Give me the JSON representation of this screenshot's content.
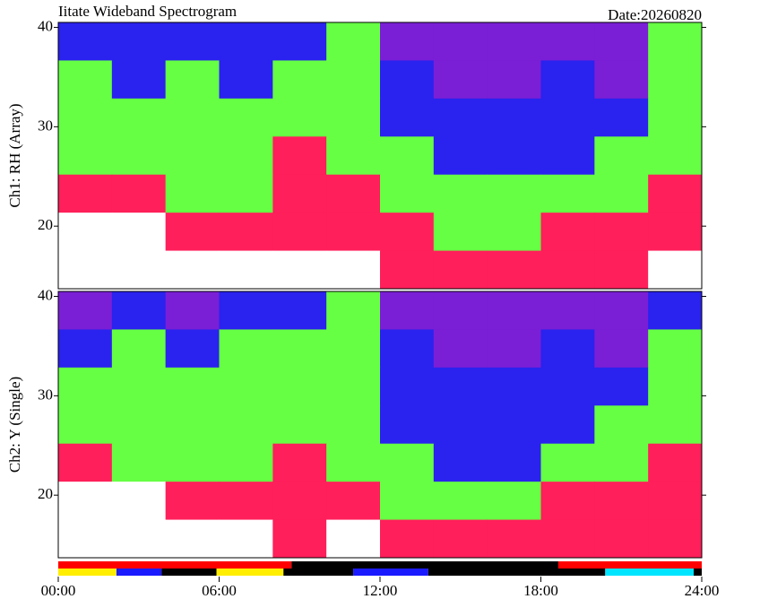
{
  "chart_data": {
    "type": "heatmap",
    "title": "Iitate Wideband Spectrogram",
    "date_label": "Date:20260820",
    "xlim": [
      0,
      24
    ],
    "xticks": [
      {
        "value": 0,
        "label": "00:00"
      },
      {
        "value": 6,
        "label": "06:00"
      },
      {
        "value": 12,
        "label": "12:00"
      },
      {
        "value": 18,
        "label": "18:00"
      },
      {
        "value": 24,
        "label": "24:00"
      }
    ],
    "colors": [
      "#ffffff",
      "#ff1f5a",
      "#66ff44",
      "#2a22ee",
      "#7a1fd6"
    ],
    "panels": [
      {
        "ylabel": "Ch1: RH (Array)",
        "ylim": [
          13.7,
          40.5
        ],
        "yticks": [
          20,
          30,
          40
        ],
        "z": [
          [
            3,
            3,
            3,
            3,
            3,
            2,
            4,
            4,
            4,
            4,
            4,
            2
          ],
          [
            2,
            3,
            2,
            3,
            2,
            2,
            3,
            4,
            4,
            3,
            4,
            2
          ],
          [
            2,
            2,
            2,
            2,
            2,
            2,
            3,
            3,
            3,
            3,
            3,
            2
          ],
          [
            2,
            2,
            2,
            2,
            1,
            2,
            2,
            3,
            3,
            3,
            2,
            2
          ],
          [
            1,
            1,
            2,
            2,
            1,
            1,
            2,
            2,
            2,
            2,
            2,
            1
          ],
          [
            0,
            0,
            1,
            1,
            1,
            1,
            1,
            2,
            2,
            1,
            1,
            1
          ],
          [
            0,
            0,
            0,
            0,
            0,
            0,
            1,
            1,
            1,
            1,
            1,
            0
          ]
        ]
      },
      {
        "ylabel": "Ch2: Y (Single)",
        "ylim": [
          13.7,
          40.5
        ],
        "yticks": [
          20,
          30,
          40
        ],
        "z": [
          [
            4,
            3,
            4,
            3,
            3,
            2,
            4,
            4,
            4,
            4,
            4,
            3
          ],
          [
            3,
            2,
            3,
            2,
            2,
            2,
            3,
            4,
            4,
            3,
            4,
            2
          ],
          [
            2,
            2,
            2,
            2,
            2,
            2,
            3,
            3,
            3,
            3,
            3,
            2
          ],
          [
            2,
            2,
            2,
            2,
            2,
            2,
            3,
            3,
            3,
            3,
            2,
            2
          ],
          [
            1,
            2,
            2,
            2,
            1,
            2,
            2,
            3,
            3,
            2,
            2,
            1
          ],
          [
            0,
            0,
            1,
            1,
            1,
            1,
            2,
            2,
            2,
            1,
            1,
            1
          ],
          [
            0,
            0,
            0,
            0,
            1,
            0,
            1,
            1,
            1,
            1,
            1,
            1
          ]
        ]
      }
    ],
    "status_bars": [
      [
        {
          "start": 0,
          "end": 8.7,
          "color": "#ff0000"
        },
        {
          "start": 8.7,
          "end": 18.65,
          "color": "#000000"
        },
        {
          "start": 18.65,
          "end": 24,
          "color": "#ff0000"
        }
      ],
      [
        {
          "start": 0,
          "end": 2.17,
          "color": "#ffee00"
        },
        {
          "start": 2.17,
          "end": 3.85,
          "color": "#1a1aff"
        },
        {
          "start": 3.85,
          "end": 5.9,
          "color": "#000000"
        },
        {
          "start": 5.9,
          "end": 8.4,
          "color": "#ffee00"
        },
        {
          "start": 8.4,
          "end": 11.0,
          "color": "#000000"
        },
        {
          "start": 11.0,
          "end": 13.8,
          "color": "#1a1aff"
        },
        {
          "start": 13.8,
          "end": 20.4,
          "color": "#000000"
        },
        {
          "start": 20.4,
          "end": 23.7,
          "color": "#00e5ff"
        },
        {
          "start": 23.7,
          "end": 24,
          "color": "#000000"
        }
      ]
    ]
  }
}
